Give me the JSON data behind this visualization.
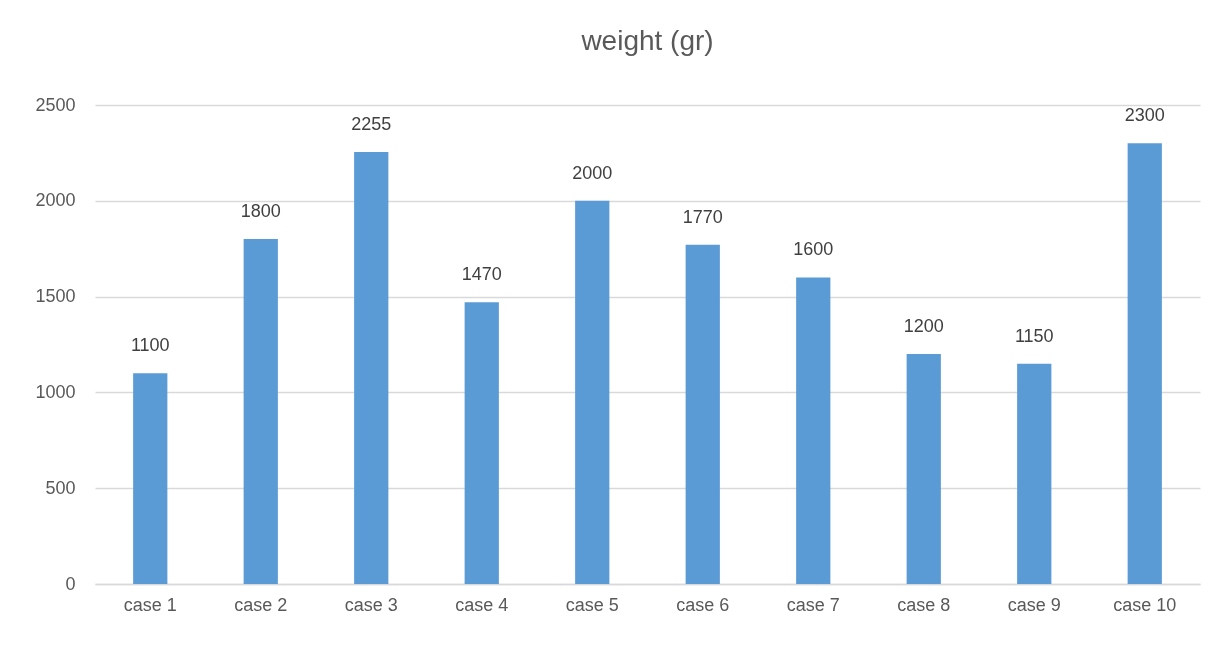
{
  "chart_data": {
    "type": "bar",
    "title": "weight (gr)",
    "categories": [
      "case 1",
      "case 2",
      "case 3",
      "case 4",
      "case 5",
      "case 6",
      "case 7",
      "case 8",
      "case 9",
      "case 10"
    ],
    "values": [
      1100,
      1800,
      2255,
      1470,
      2000,
      1770,
      1600,
      1200,
      1150,
      2300
    ],
    "color": "#5b9bd5",
    "ylim": [
      0,
      2500
    ],
    "yticks": [
      0,
      500,
      1000,
      1500,
      2000,
      2500
    ],
    "grid": "y",
    "data_labels": true
  }
}
